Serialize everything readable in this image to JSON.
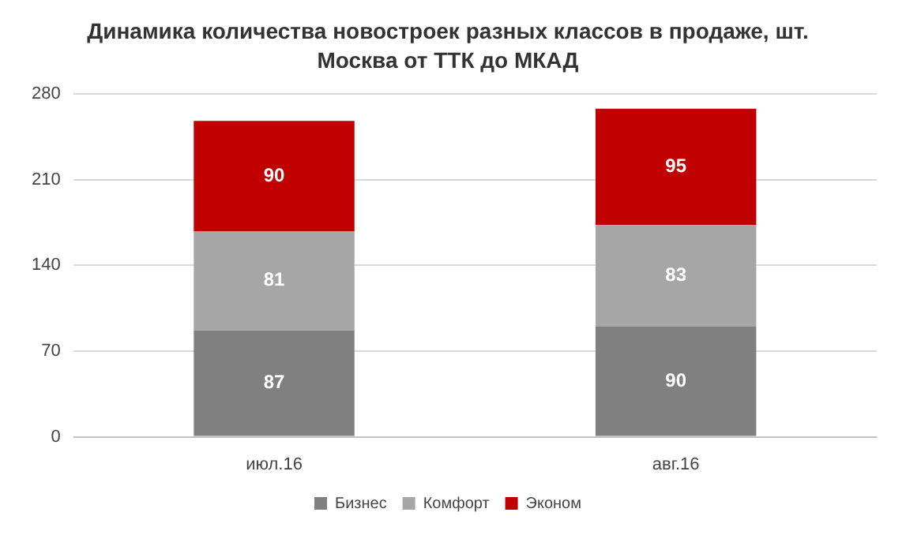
{
  "chart_data": {
    "type": "bar",
    "title": "Динамика количества новостроек разных классов в продаже, шт.",
    "subtitle": "Москва от ТТК до МКАД",
    "categories": [
      "июл.16",
      "авг.16"
    ],
    "series": [
      {
        "name": "Бизнес",
        "color": "#808080",
        "values": [
          87,
          90
        ]
      },
      {
        "name": "Комфорт",
        "color": "#a6a6a6",
        "values": [
          81,
          83
        ]
      },
      {
        "name": "Эконом",
        "color": "#c00000",
        "values": [
          90,
          95
        ]
      }
    ],
    "stacked": true,
    "ylim": [
      0,
      280
    ],
    "yticks": [
      0,
      70,
      140,
      210,
      280
    ],
    "grid": "y",
    "legend": "bottom",
    "data_labels": true
  }
}
